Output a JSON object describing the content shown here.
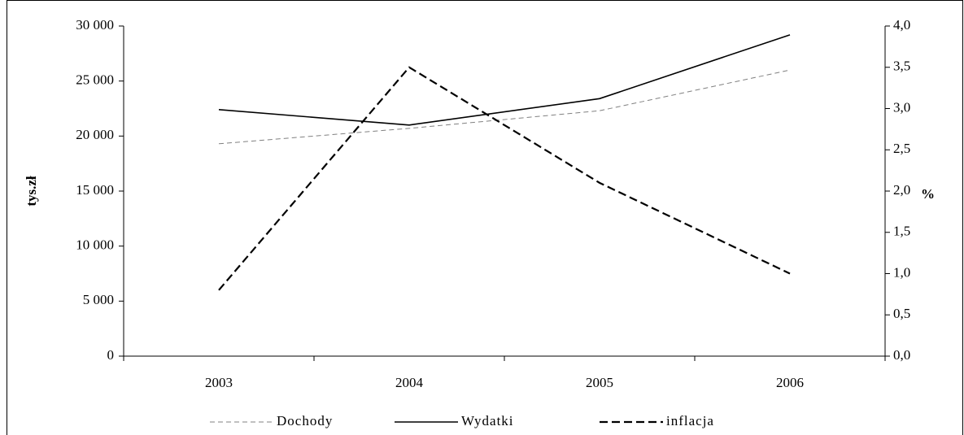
{
  "chart_data": {
    "type": "line",
    "categories": [
      "2003",
      "2004",
      "2005",
      "2006"
    ],
    "series": [
      {
        "name": "Dochody",
        "color": "#808080",
        "dash": "6,4",
        "width": 1,
        "values": [
          19300,
          20700,
          22300,
          26000
        ]
      },
      {
        "name": "Wydatki",
        "color": "#000000",
        "dash": "none",
        "width": 1.6,
        "values": [
          22400,
          21000,
          23400,
          29200
        ]
      },
      {
        "name": "inflacja",
        "color": "#000000",
        "dash": "10,5",
        "width": 2.2,
        "axis": "y2",
        "values": [
          0.8,
          3.5,
          2.1,
          1.0
        ]
      }
    ],
    "ylabel": "tys.zł",
    "y2label": "%",
    "ylim": [
      0,
      30000
    ],
    "yticks": [
      0,
      {
        "value": 5000,
        "label": "5 000"
      },
      {
        "value": 10000,
        "label": "10 000"
      },
      {
        "value": 15000,
        "label": "15 000"
      },
      {
        "value": 20000,
        "label": "20 000"
      },
      {
        "value": 25000,
        "label": "25 000"
      },
      {
        "value": 30000,
        "label": "30 000"
      }
    ],
    "y2lim": [
      0,
      4
    ],
    "y2ticks": [
      {
        "value": 0,
        "label": "0,0"
      },
      {
        "value": 0.5,
        "label": "0,5"
      },
      {
        "value": 1,
        "label": "1,0"
      },
      {
        "value": 1.5,
        "label": "1,5"
      },
      {
        "value": 2,
        "label": "2,0"
      },
      {
        "value": 2.5,
        "label": "2,5"
      },
      {
        "value": 3,
        "label": "3,0"
      },
      {
        "value": 3.5,
        "label": "3,5"
      },
      {
        "value": 4,
        "label": "4,0"
      }
    ],
    "legend": "bottom"
  }
}
